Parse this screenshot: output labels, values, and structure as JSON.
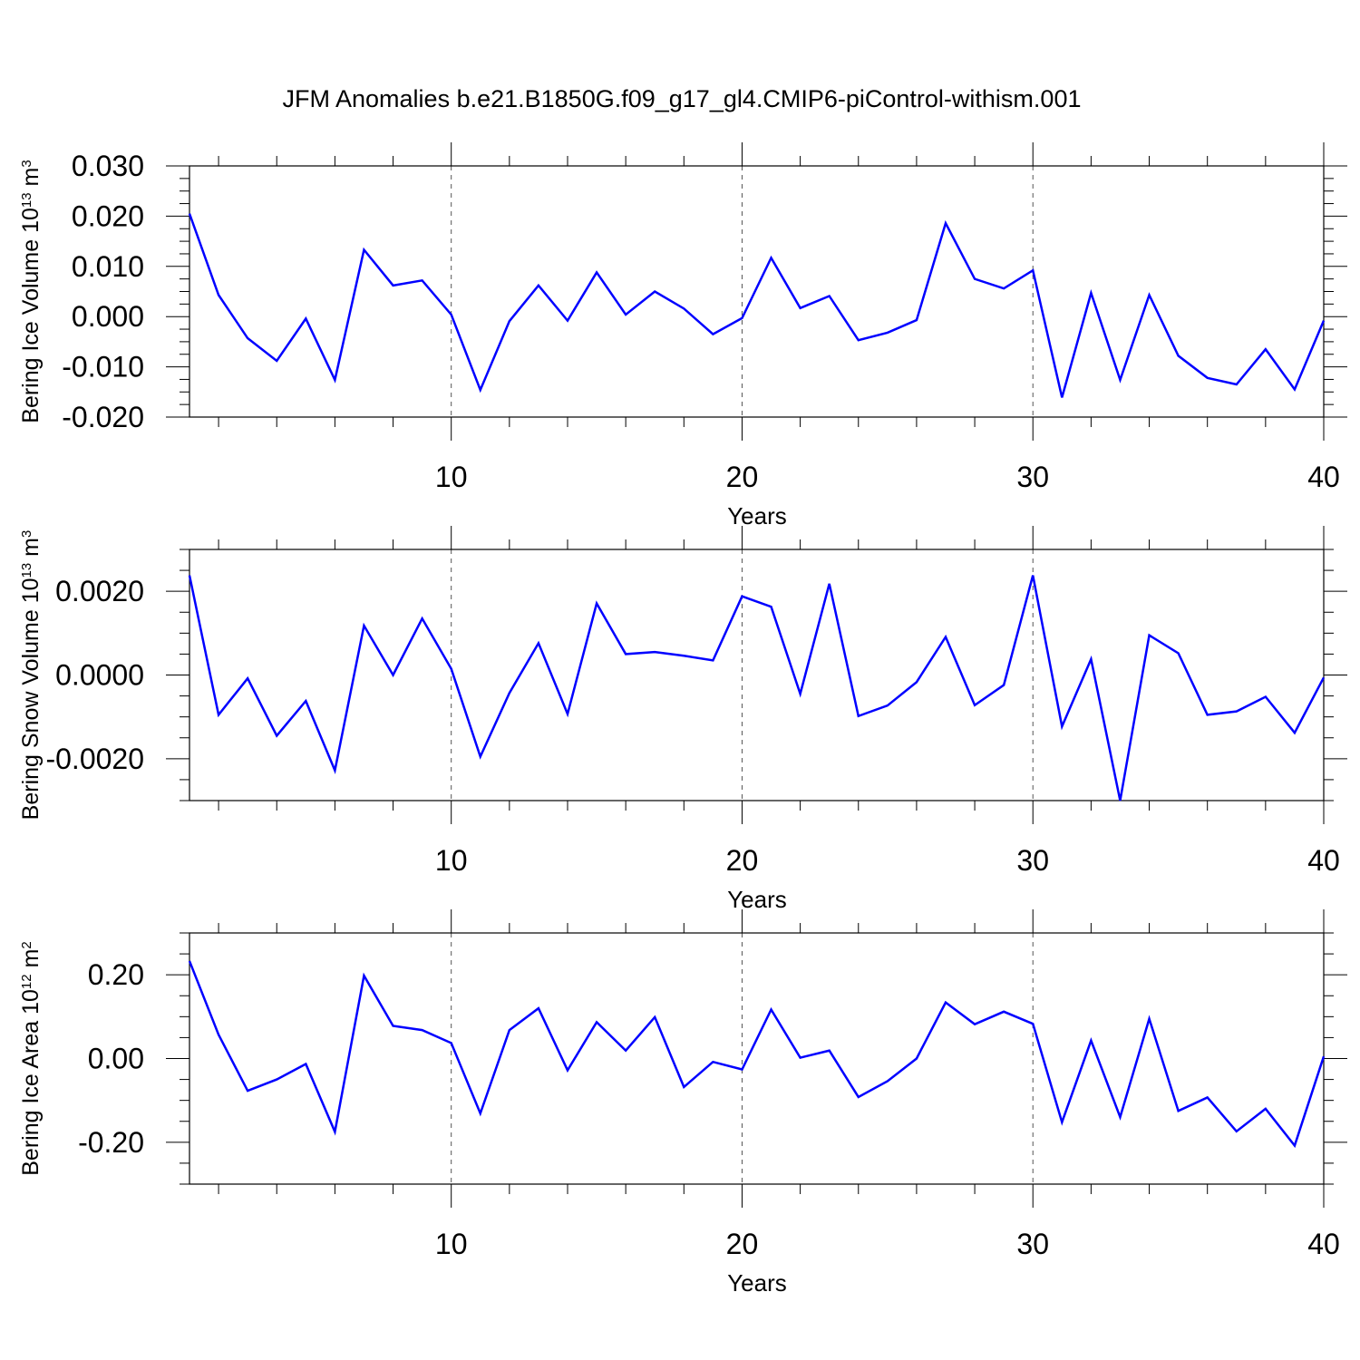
{
  "title": "JFM Anomalies b.e21.B1850G.f09_g17_gl4.CMIP6-piControl-withism.001",
  "line_color": "#0000ff",
  "chart_data": [
    {
      "type": "line",
      "ylabel": "Bering Ice Volume 10",
      "ylabel_exp": "13",
      "ylabel_unit": " m",
      "ylabel_unit_exp": "3",
      "xlabel": "Years",
      "xlim": [
        1,
        40
      ],
      "ylim": [
        -0.02,
        0.03
      ],
      "xticks": [
        10,
        20,
        30,
        40
      ],
      "xtick_labels": [
        "10",
        "20",
        "30",
        "40"
      ],
      "yticks": [
        -0.02,
        -0.01,
        0.0,
        0.01,
        0.02,
        0.03
      ],
      "ytick_labels": [
        "-0.020",
        "-0.010",
        "0.000",
        "0.010",
        "0.020",
        "0.030"
      ],
      "x": [
        1,
        2,
        3,
        4,
        5,
        6,
        7,
        8,
        9,
        10,
        11,
        12,
        13,
        14,
        15,
        16,
        17,
        18,
        19,
        20,
        21,
        22,
        23,
        24,
        25,
        26,
        27,
        28,
        29,
        30,
        31,
        32,
        33,
        34,
        35,
        36,
        37,
        38,
        39,
        40
      ],
      "values": [
        0.0205,
        0.0043,
        -0.0043,
        -0.0088,
        -0.0004,
        -0.0126,
        0.0133,
        0.0062,
        0.0072,
        0.0004,
        -0.0146,
        -0.0009,
        0.0062,
        -0.0008,
        0.0088,
        0.0004,
        0.005,
        0.0016,
        -0.0035,
        -0.0003,
        0.0117,
        0.0017,
        0.0041,
        -0.0047,
        -0.0032,
        -0.0007,
        0.0186,
        0.0075,
        0.0056,
        0.0092,
        -0.0161,
        0.0047,
        -0.0126,
        0.0043,
        -0.0078,
        -0.0122,
        -0.0135,
        -0.0065,
        -0.0145,
        -0.0008
      ]
    },
    {
      "type": "line",
      "ylabel": "Bering Snow Volume 10",
      "ylabel_exp": "13",
      "ylabel_unit": " m",
      "ylabel_unit_exp": "3",
      "xlabel": "Years",
      "xlim": [
        1,
        40
      ],
      "ylim": [
        -0.003,
        0.003
      ],
      "xticks": [
        10,
        20,
        30,
        40
      ],
      "xtick_labels": [
        "10",
        "20",
        "30",
        "40"
      ],
      "yticks": [
        -0.002,
        0.0,
        0.002
      ],
      "ytick_labels": [
        "-0.0020",
        "0.0000",
        "0.0020"
      ],
      "x": [
        1,
        2,
        3,
        4,
        5,
        6,
        7,
        8,
        9,
        10,
        11,
        12,
        13,
        14,
        15,
        16,
        17,
        18,
        19,
        20,
        21,
        22,
        23,
        24,
        25,
        26,
        27,
        28,
        29,
        30,
        31,
        32,
        33,
        34,
        35,
        36,
        37,
        38,
        39,
        40
      ],
      "values": [
        0.00238,
        -0.00095,
        -8e-05,
        -0.00145,
        -0.00062,
        -0.00228,
        0.00118,
        0.0,
        0.00135,
        0.00015,
        -0.00195,
        -0.00043,
        0.00076,
        -0.00093,
        0.00171,
        0.0005,
        0.00055,
        0.00046,
        0.00035,
        0.00188,
        0.00163,
        -0.00045,
        0.00218,
        -0.00098,
        -0.00073,
        -0.00017,
        0.00091,
        -0.00072,
        -0.00024,
        0.00238,
        -0.00123,
        0.00038,
        -0.003,
        0.00095,
        0.00052,
        -0.00095,
        -0.00087,
        -0.00052,
        -0.00138,
        -6e-05
      ]
    },
    {
      "type": "line",
      "ylabel": "Bering Ice Area 10",
      "ylabel_exp": "12",
      "ylabel_unit": " m",
      "ylabel_unit_exp": "2",
      "xlabel": "Years",
      "xlim": [
        1,
        40
      ],
      "ylim": [
        -0.3,
        0.3
      ],
      "xticks": [
        10,
        20,
        30,
        40
      ],
      "xtick_labels": [
        "10",
        "20",
        "30",
        "40"
      ],
      "yticks": [
        -0.2,
        0.0,
        0.2
      ],
      "ytick_labels": [
        "-0.20",
        "0.00",
        "0.20"
      ],
      "x": [
        1,
        2,
        3,
        4,
        5,
        6,
        7,
        8,
        9,
        10,
        11,
        12,
        13,
        14,
        15,
        16,
        17,
        18,
        19,
        20,
        21,
        22,
        23,
        24,
        25,
        26,
        27,
        28,
        29,
        30,
        31,
        32,
        33,
        34,
        35,
        36,
        37,
        38,
        39,
        40
      ],
      "values": [
        0.233,
        0.057,
        -0.077,
        -0.05,
        -0.013,
        -0.175,
        0.198,
        0.078,
        0.068,
        0.037,
        -0.131,
        0.068,
        0.12,
        -0.028,
        0.087,
        0.019,
        0.099,
        -0.068,
        -0.008,
        -0.026,
        0.117,
        0.002,
        0.019,
        -0.092,
        -0.054,
        0.0,
        0.134,
        0.082,
        0.112,
        0.083,
        -0.152,
        0.043,
        -0.14,
        0.095,
        -0.125,
        -0.093,
        -0.174,
        -0.12,
        -0.208,
        0.005
      ]
    }
  ]
}
